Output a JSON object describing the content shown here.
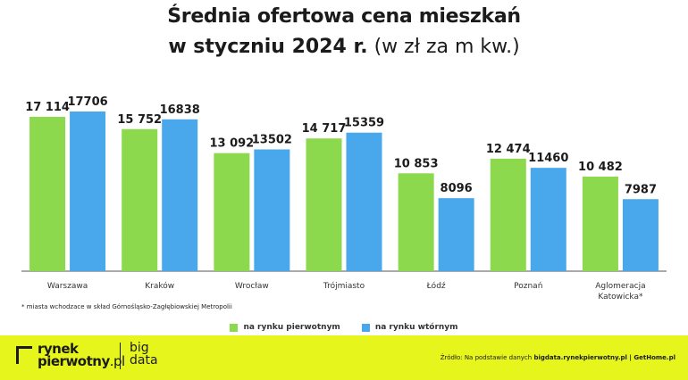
{
  "title_line1": "Średnia ofertowa cena mieszkań",
  "title_line2_bold": "w styczniu 2024 r.",
  "title_line2_rest": "(w zł za m kw.)",
  "footnote": "* miasta wchodzace w skład Górnośląsko-Zagłębiowskiej Metropolii",
  "legend": [
    {
      "label": "na rynku pierwotnym",
      "color": "#8cd94e"
    },
    {
      "label": "na rynku wtórnym",
      "color": "#49a7ec"
    }
  ],
  "logo": {
    "brand1": "rynek",
    "brand2": "pierwotny",
    "brand2_domain": ".pl",
    "brand3_line1": "big",
    "brand3_line2": "data"
  },
  "source": {
    "prefix": "Źródło: Na podstawie danych ",
    "bold": "bigdata.rynekpierwotny.pl | GetHome.pl"
  },
  "chart_data": {
    "type": "bar",
    "categories": [
      "Warszawa",
      "Kraków",
      "Wrocław",
      "Trójmiasto",
      "Łódź",
      "Poznań",
      "Aglomeracja Katowicka*"
    ],
    "category_labels": [
      [
        "Warszawa"
      ],
      [
        "Kraków"
      ],
      [
        "Wrocław"
      ],
      [
        "Trójmiasto"
      ],
      [
        "Łódź"
      ],
      [
        "Poznań"
      ],
      [
        "Aglomeracja",
        "Katowicka*"
      ]
    ],
    "series": [
      {
        "name": "na rynku pierwotnym",
        "color": "#8cd94e",
        "values": [
          17114,
          15752,
          13092,
          14717,
          10853,
          12474,
          10482
        ],
        "labels": [
          "17 114",
          "15 752",
          "13 092",
          "14 717",
          "10 853",
          "12 474",
          "10 482"
        ]
      },
      {
        "name": "na rynku wtórnym",
        "color": "#49a7ec",
        "values": [
          17706,
          16838,
          13502,
          15359,
          8096,
          11460,
          7987
        ],
        "labels": [
          "17706",
          "16838",
          "13502",
          "15359",
          "8096",
          "11460",
          "7987"
        ]
      }
    ],
    "ylim": [
      0,
      17706
    ],
    "grid": false,
    "legend_position": "bottom"
  }
}
